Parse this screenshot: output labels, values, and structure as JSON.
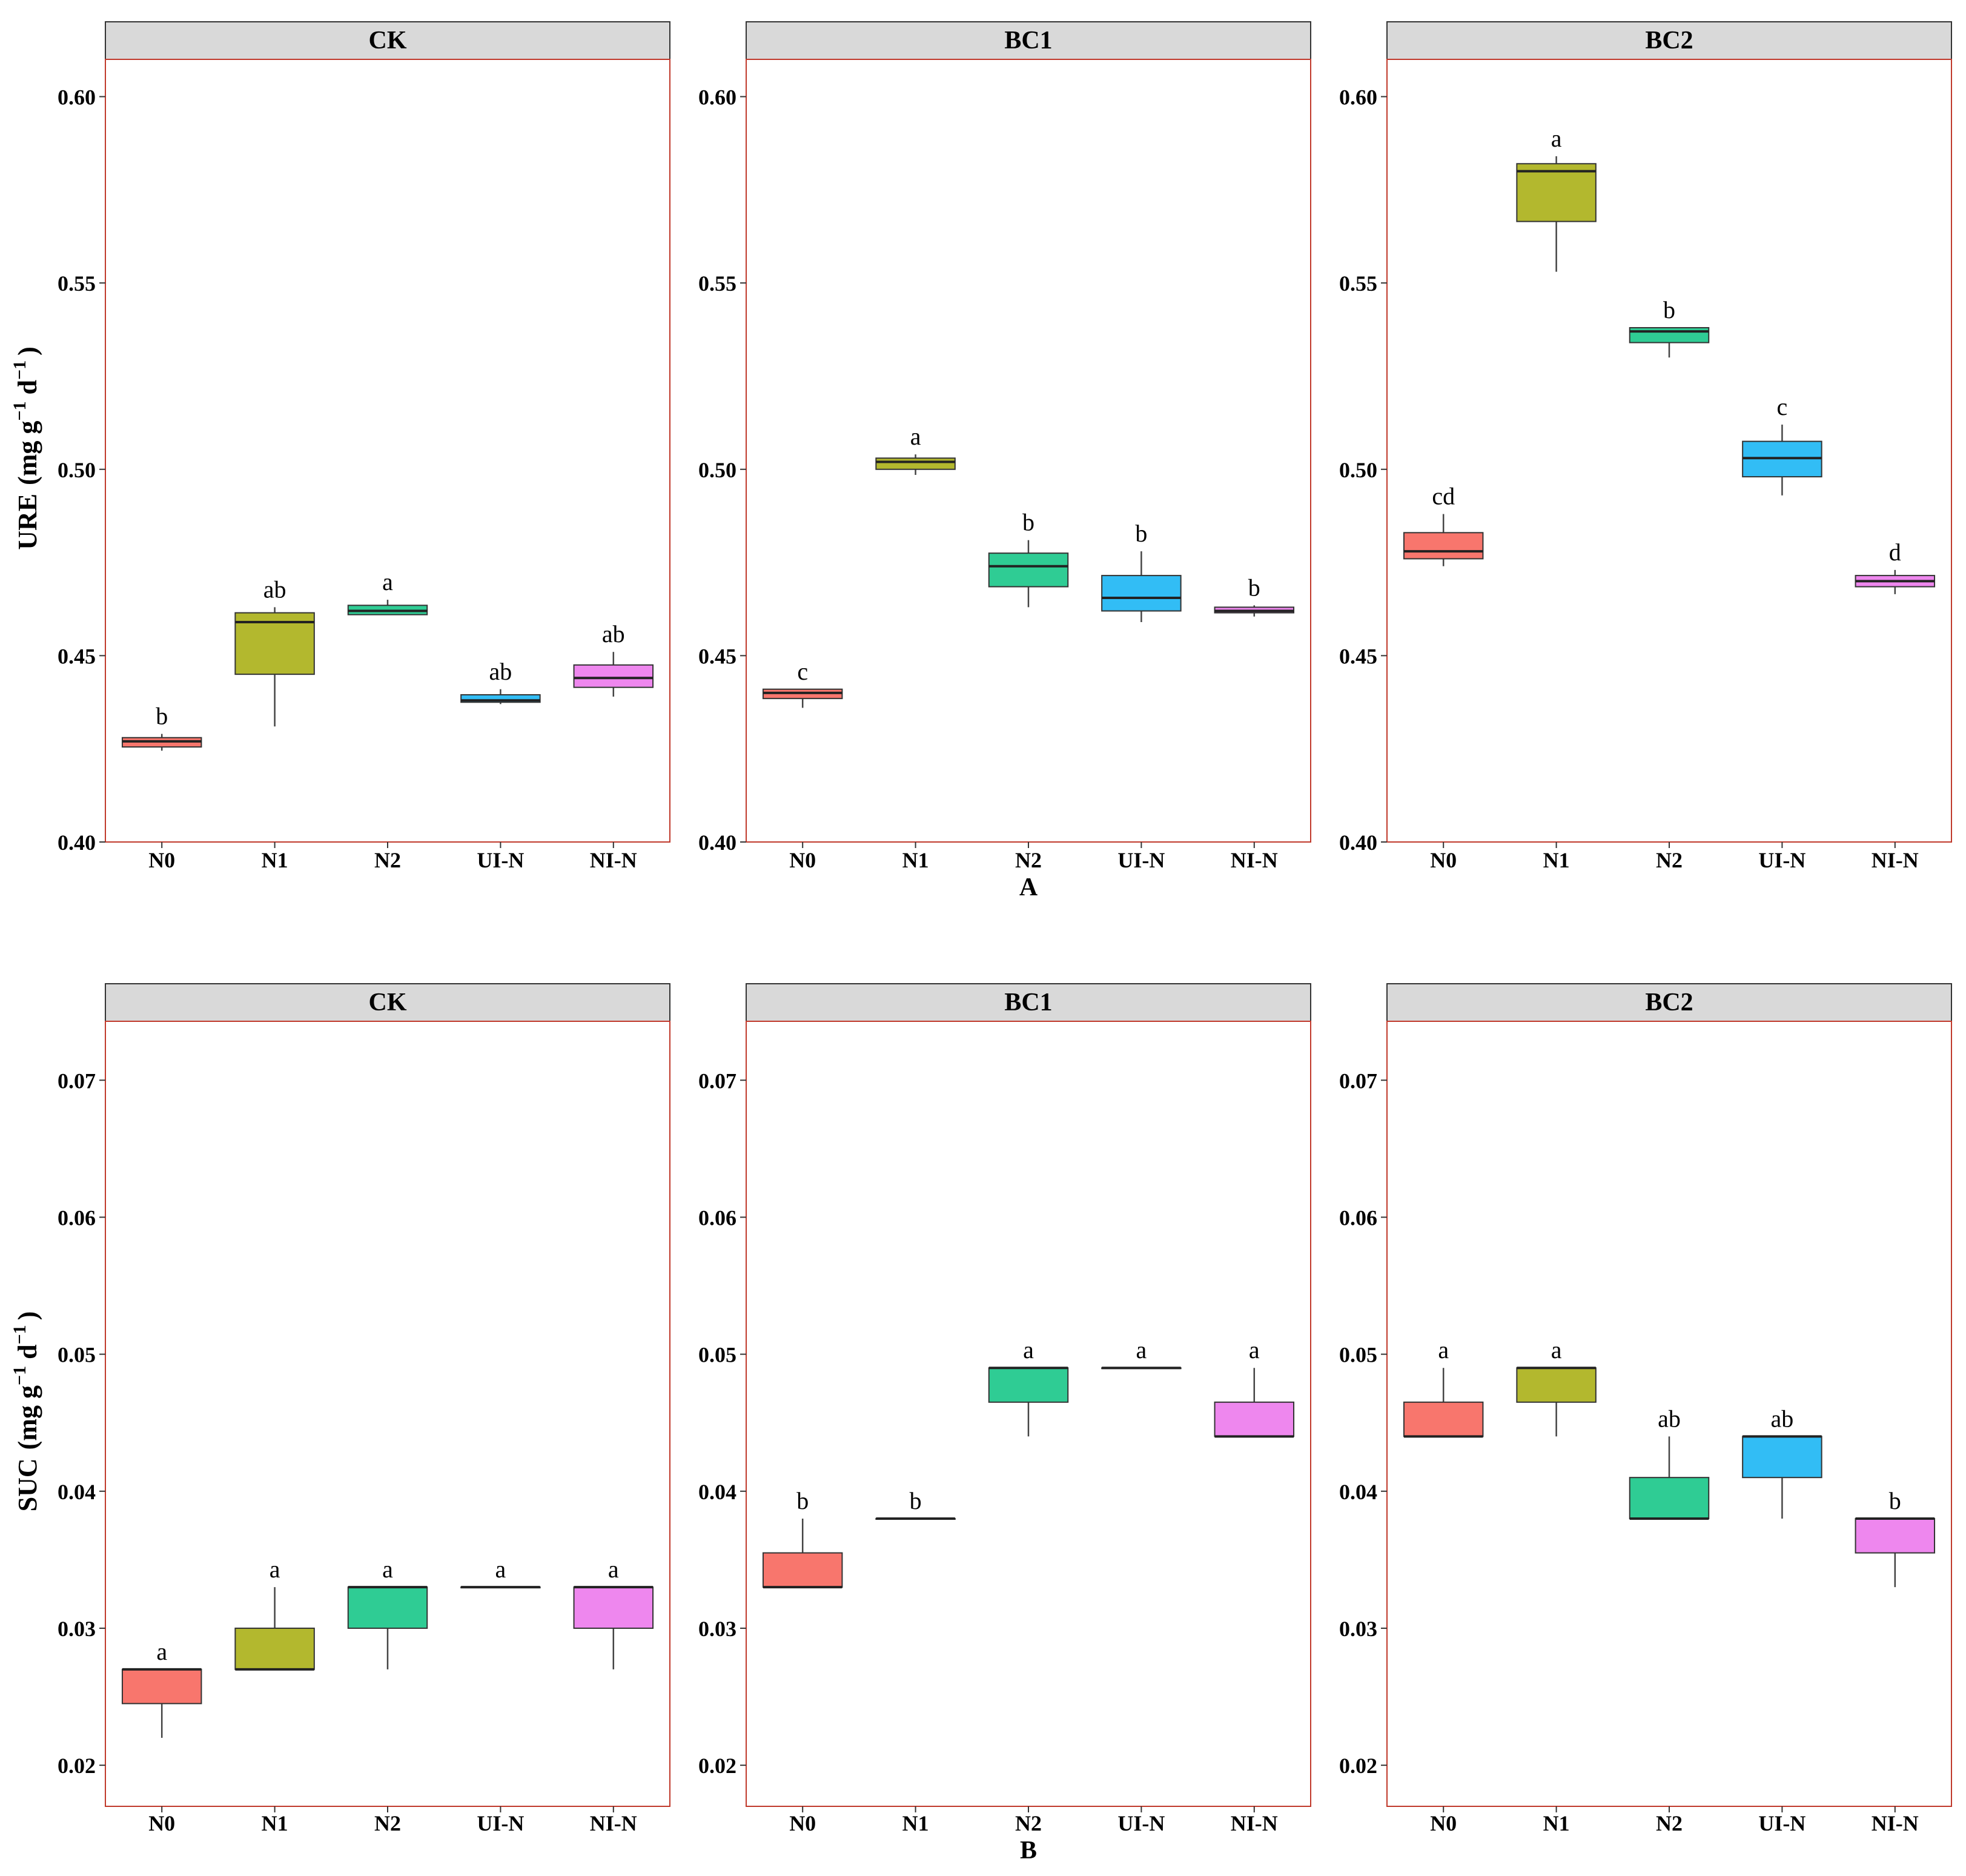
{
  "colors": {
    "N0": "#F8766D",
    "N1": "#B3B82E",
    "N2": "#2FCC94",
    "UI-N": "#32BDF5",
    "NI-N": "#EE87EE",
    "strip_fill": "#D9D9D9",
    "panel_border": "#C0392B",
    "median": "#222222"
  },
  "chart_data": [
    {
      "type": "boxplot",
      "section_label": "A",
      "ylabel_main": "URE",
      "ylabel_unit": "(mg g",
      "ylabel_sup1": "−1",
      "ylabel_mid": " d",
      "ylabel_sup2": "−1",
      "ylabel_close": ")",
      "ylim": [
        0.4,
        0.61
      ],
      "yticks": [
        "0.40",
        "0.45",
        "0.50",
        "0.55",
        "0.60"
      ],
      "categories": [
        "N0",
        "N1",
        "N2",
        "UI-N",
        "NI-N"
      ],
      "panels": [
        {
          "title": "CK",
          "boxes": [
            {
              "min": 0.4245,
              "q1": 0.4255,
              "median": 0.427,
              "q3": 0.428,
              "max": 0.429,
              "letter": "b"
            },
            {
              "min": 0.431,
              "q1": 0.445,
              "median": 0.459,
              "q3": 0.4615,
              "max": 0.463,
              "letter": "ab"
            },
            {
              "min": 0.461,
              "q1": 0.461,
              "median": 0.462,
              "q3": 0.4635,
              "max": 0.465,
              "letter": "a"
            },
            {
              "min": 0.437,
              "q1": 0.4375,
              "median": 0.438,
              "q3": 0.4395,
              "max": 0.441,
              "letter": "ab"
            },
            {
              "min": 0.439,
              "q1": 0.4415,
              "median": 0.444,
              "q3": 0.4475,
              "max": 0.451,
              "letter": "ab"
            }
          ]
        },
        {
          "title": "BC1",
          "boxes": [
            {
              "min": 0.436,
              "q1": 0.4385,
              "median": 0.44,
              "q3": 0.441,
              "max": 0.441,
              "letter": "c"
            },
            {
              "min": 0.4985,
              "q1": 0.5,
              "median": 0.502,
              "q3": 0.503,
              "max": 0.504,
              "letter": "a"
            },
            {
              "min": 0.463,
              "q1": 0.4685,
              "median": 0.474,
              "q3": 0.4775,
              "max": 0.481,
              "letter": "b"
            },
            {
              "min": 0.459,
              "q1": 0.462,
              "median": 0.4655,
              "q3": 0.4715,
              "max": 0.478,
              "letter": "b"
            },
            {
              "min": 0.4605,
              "q1": 0.4615,
              "median": 0.462,
              "q3": 0.463,
              "max": 0.4635,
              "letter": "b"
            }
          ]
        },
        {
          "title": "BC2",
          "boxes": [
            {
              "min": 0.474,
              "q1": 0.476,
              "median": 0.478,
              "q3": 0.483,
              "max": 0.488,
              "letter": "cd"
            },
            {
              "min": 0.553,
              "q1": 0.5665,
              "median": 0.58,
              "q3": 0.582,
              "max": 0.584,
              "letter": "a"
            },
            {
              "min": 0.53,
              "q1": 0.534,
              "median": 0.537,
              "q3": 0.538,
              "max": 0.538,
              "letter": "b"
            },
            {
              "min": 0.493,
              "q1": 0.498,
              "median": 0.503,
              "q3": 0.5075,
              "max": 0.512,
              "letter": "c"
            },
            {
              "min": 0.4665,
              "q1": 0.4685,
              "median": 0.47,
              "q3": 0.4715,
              "max": 0.473,
              "letter": "d"
            }
          ]
        }
      ]
    },
    {
      "type": "boxplot",
      "section_label": "B",
      "ylabel_main": "SUC",
      "ylabel_unit": "(mg g",
      "ylabel_sup1": "−1",
      "ylabel_mid": " d",
      "ylabel_sup2": "−1",
      "ylabel_close": ")",
      "ylim": [
        0.017,
        0.0743
      ],
      "yticks": [
        "0.02",
        "0.03",
        "0.04",
        "0.05",
        "0.06",
        "0.07"
      ],
      "categories": [
        "N0",
        "N1",
        "N2",
        "UI-N",
        "NI-N"
      ],
      "panels": [
        {
          "title": "CK",
          "boxes": [
            {
              "min": 0.022,
              "q1": 0.0245,
              "median": 0.027,
              "q3": 0.027,
              "max": 0.027,
              "letter": "a"
            },
            {
              "min": 0.027,
              "q1": 0.027,
              "median": 0.027,
              "q3": 0.03,
              "max": 0.033,
              "letter": "a"
            },
            {
              "min": 0.027,
              "q1": 0.03,
              "median": 0.033,
              "q3": 0.033,
              "max": 0.033,
              "letter": "a"
            },
            {
              "min": 0.033,
              "q1": 0.033,
              "median": 0.033,
              "q3": 0.033,
              "max": 0.033,
              "letter": "a"
            },
            {
              "min": 0.027,
              "q1": 0.03,
              "median": 0.033,
              "q3": 0.033,
              "max": 0.033,
              "letter": "a"
            }
          ]
        },
        {
          "title": "BC1",
          "boxes": [
            {
              "min": 0.033,
              "q1": 0.033,
              "median": 0.033,
              "q3": 0.0355,
              "max": 0.038,
              "letter": "b"
            },
            {
              "min": 0.038,
              "q1": 0.038,
              "median": 0.038,
              "q3": 0.038,
              "max": 0.038,
              "letter": "b"
            },
            {
              "min": 0.044,
              "q1": 0.0465,
              "median": 0.049,
              "q3": 0.049,
              "max": 0.049,
              "letter": "a"
            },
            {
              "min": 0.049,
              "q1": 0.049,
              "median": 0.049,
              "q3": 0.049,
              "max": 0.049,
              "letter": "a"
            },
            {
              "min": 0.044,
              "q1": 0.044,
              "median": 0.044,
              "q3": 0.0465,
              "max": 0.049,
              "letter": "a"
            }
          ]
        },
        {
          "title": "BC2",
          "boxes": [
            {
              "min": 0.044,
              "q1": 0.044,
              "median": 0.044,
              "q3": 0.0465,
              "max": 0.049,
              "letter": "a"
            },
            {
              "min": 0.044,
              "q1": 0.0465,
              "median": 0.049,
              "q3": 0.049,
              "max": 0.049,
              "letter": "a"
            },
            {
              "min": 0.038,
              "q1": 0.038,
              "median": 0.038,
              "q3": 0.041,
              "max": 0.044,
              "letter": "ab"
            },
            {
              "min": 0.038,
              "q1": 0.041,
              "median": 0.044,
              "q3": 0.044,
              "max": 0.044,
              "letter": "ab"
            },
            {
              "min": 0.033,
              "q1": 0.0355,
              "median": 0.038,
              "q3": 0.038,
              "max": 0.038,
              "letter": "b"
            }
          ]
        }
      ]
    }
  ]
}
